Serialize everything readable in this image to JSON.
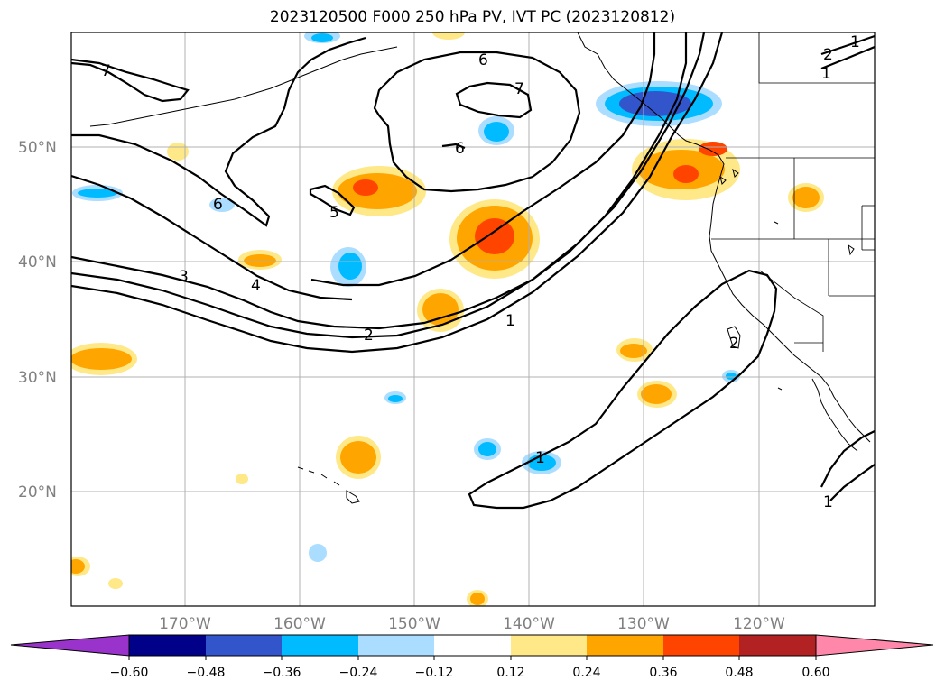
{
  "title": "2023120500 F000 250 hPa PV, IVT PC (2023120812)",
  "axes": {
    "lat_labels": [
      "50°N",
      "40°N",
      "30°N",
      "20°N"
    ],
    "lon_labels": [
      "170°W",
      "160°W",
      "150°W",
      "140°W",
      "130°W",
      "120°W"
    ]
  },
  "contour_labels": [
    "7",
    "6",
    "7",
    "6",
    "6",
    "5",
    "4",
    "3",
    "2",
    "1",
    "1",
    "2",
    "1",
    "2",
    "1",
    "1"
  ],
  "colorbar": {
    "tick_labels": [
      "−0.60",
      "−0.48",
      "−0.36",
      "−0.24",
      "−0.12",
      "0.12",
      "0.24",
      "0.36",
      "0.48",
      "0.60"
    ],
    "colors": [
      "#9933cc",
      "#000088",
      "#3355cc",
      "#00bbff",
      "#aaddff",
      "#ffffff",
      "#ffe888",
      "#ffa500",
      "#ff4400",
      "#b22222",
      "#ff88aa"
    ]
  }
}
